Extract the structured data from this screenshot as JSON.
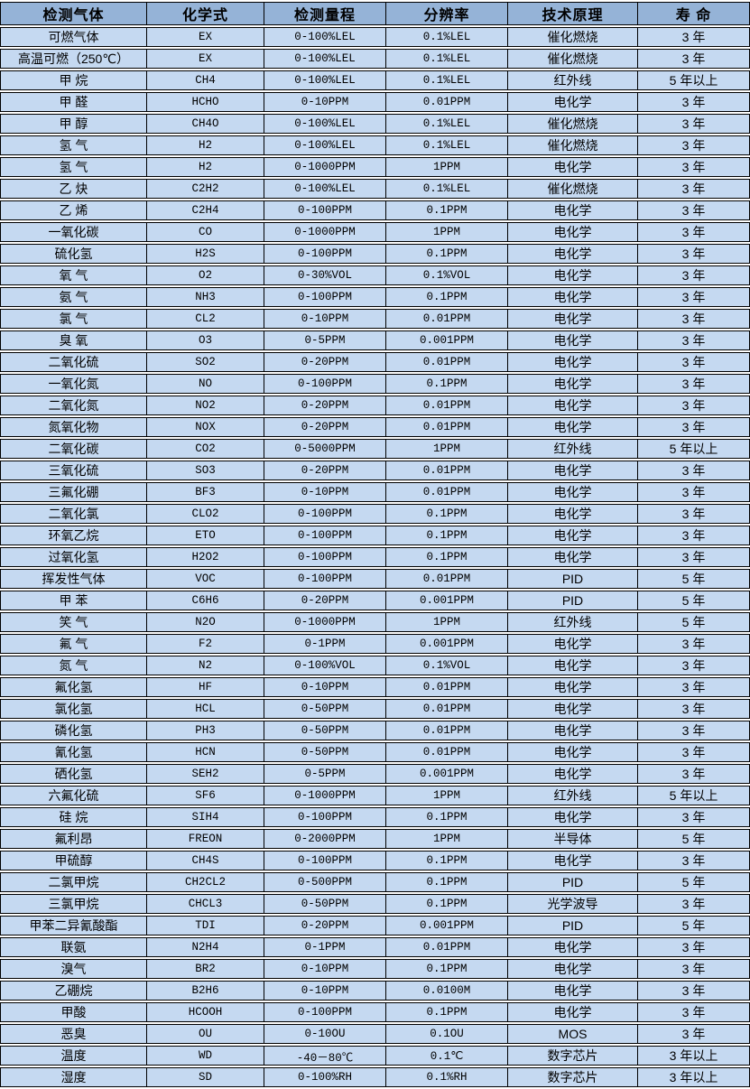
{
  "colors": {
    "header_bg": "#95B3D7",
    "row_bg": "#C5D9F1",
    "border": "#000000",
    "gap": "#FFFFFF"
  },
  "chart_data": {
    "type": "table",
    "title": "",
    "columns": [
      "检测气体",
      "化学式",
      "检测量程",
      "分辨率",
      "技术原理",
      "寿 命"
    ],
    "rows": [
      [
        "可燃气体",
        "EX",
        "0-100%LEL",
        "0.1%LEL",
        "催化燃烧",
        "3 年"
      ],
      [
        "高温可燃（250℃）",
        "EX",
        "0-100%LEL",
        "0.1%LEL",
        "催化燃烧",
        "3 年"
      ],
      [
        "甲 烷",
        "CH4",
        "0-100%LEL",
        "0.1%LEL",
        "红外线",
        "5 年以上"
      ],
      [
        "甲 醛",
        "HCHO",
        "0-10PPM",
        "0.01PPM",
        "电化学",
        "3 年"
      ],
      [
        "甲 醇",
        "CH4O",
        "0-100%LEL",
        "0.1%LEL",
        "催化燃烧",
        "3 年"
      ],
      [
        "氢 气",
        "H2",
        "0-100%LEL",
        "0.1%LEL",
        "催化燃烧",
        "3 年"
      ],
      [
        "氢 气",
        "H2",
        "0-1000PPM",
        "1PPM",
        "电化学",
        "3 年"
      ],
      [
        "乙 炔",
        "C2H2",
        "0-100%LEL",
        "0.1%LEL",
        "催化燃烧",
        "3 年"
      ],
      [
        "乙 烯",
        "C2H4",
        "0-100PPM",
        "0.1PPM",
        "电化学",
        "3 年"
      ],
      [
        "一氧化碳",
        "CO",
        "0-1000PPM",
        "1PPM",
        "电化学",
        "3 年"
      ],
      [
        "硫化氢",
        "H2S",
        "0-100PPM",
        "0.1PPM",
        "电化学",
        "3 年"
      ],
      [
        "氧 气",
        "O2",
        "0-30%VOL",
        "0.1%VOL",
        "电化学",
        "3 年"
      ],
      [
        "氨 气",
        "NH3",
        "0-100PPM",
        "0.1PPM",
        "电化学",
        "3 年"
      ],
      [
        "氯 气",
        "CL2",
        "0-10PPM",
        "0.01PPM",
        "电化学",
        "3 年"
      ],
      [
        "臭 氧",
        "O3",
        "0-5PPM",
        "0.001PPM",
        "电化学",
        "3 年"
      ],
      [
        "二氧化硫",
        "SO2",
        "0-20PPM",
        "0.01PPM",
        "电化学",
        "3 年"
      ],
      [
        "一氧化氮",
        "NO",
        "0-100PPM",
        "0.1PPM",
        "电化学",
        "3 年"
      ],
      [
        "二氧化氮",
        "NO2",
        "0-20PPM",
        "0.01PPM",
        "电化学",
        "3 年"
      ],
      [
        "氮氧化物",
        "NOX",
        "0-20PPM",
        "0.01PPM",
        "电化学",
        "3 年"
      ],
      [
        "二氧化碳",
        "CO2",
        "0-5000PPM",
        "1PPM",
        "红外线",
        "5 年以上"
      ],
      [
        "三氧化硫",
        "SO3",
        "0-20PPM",
        "0.01PPM",
        "电化学",
        "3 年"
      ],
      [
        "三氟化硼",
        "BF3",
        "0-10PPM",
        "0.01PPM",
        "电化学",
        "3 年"
      ],
      [
        "二氧化氯",
        "CLO2",
        "0-100PPM",
        "0.1PPM",
        "电化学",
        "3 年"
      ],
      [
        "环氧乙烷",
        "ETO",
        "0-100PPM",
        "0.1PPM",
        "电化学",
        "3 年"
      ],
      [
        "过氧化氢",
        "H2O2",
        "0-100PPM",
        "0.1PPM",
        "电化学",
        "3 年"
      ],
      [
        "挥发性气体",
        "VOC",
        "0-100PPM",
        "0.01PPM",
        "PID",
        "5 年"
      ],
      [
        "甲 苯",
        "C6H6",
        "0-20PPM",
        "0.001PPM",
        "PID",
        "5 年"
      ],
      [
        "笑 气",
        "N2O",
        "0-1000PPM",
        "1PPM",
        "红外线",
        "5 年"
      ],
      [
        "氟 气",
        "F2",
        "0-1PPM",
        "0.001PPM",
        "电化学",
        "3 年"
      ],
      [
        "氮 气",
        "N2",
        "0-100%VOL",
        "0.1%VOL",
        "电化学",
        "3 年"
      ],
      [
        "氟化氢",
        "HF",
        "0-10PPM",
        "0.01PPM",
        "电化学",
        "3 年"
      ],
      [
        "氯化氢",
        "HCL",
        "0-50PPM",
        "0.01PPM",
        "电化学",
        "3 年"
      ],
      [
        "磷化氢",
        "PH3",
        "0-50PPM",
        "0.01PPM",
        "电化学",
        "3 年"
      ],
      [
        "氰化氢",
        "HCN",
        "0-50PPM",
        "0.01PPM",
        "电化学",
        "3 年"
      ],
      [
        "硒化氢",
        "SEH2",
        "0-5PPM",
        "0.001PPM",
        "电化学",
        "3 年"
      ],
      [
        "六氟化硫",
        "SF6",
        "0-1000PPM",
        "1PPM",
        "红外线",
        "5 年以上"
      ],
      [
        "硅 烷",
        "SIH4",
        "0-100PPM",
        "0.1PPM",
        "电化学",
        "3 年"
      ],
      [
        "氟利昂",
        "FREON",
        "0-2000PPM",
        "1PPM",
        "半导体",
        "5 年"
      ],
      [
        "甲硫醇",
        "CH4S",
        "0-100PPM",
        "0.1PPM",
        "电化学",
        "3 年"
      ],
      [
        "二氯甲烷",
        "CH2CL2",
        "0-500PPM",
        "0.1PPM",
        "PID",
        "5 年"
      ],
      [
        "三氯甲烷",
        "CHCL3",
        "0-50PPM",
        "0.1PPM",
        "光学波导",
        "3 年"
      ],
      [
        "甲苯二异氰酸酯",
        "TDI",
        "0-20PPM",
        "0.001PPM",
        "PID",
        "5 年"
      ],
      [
        "联氨",
        "N2H4",
        "0-1PPM",
        "0.01PPM",
        "电化学",
        "3 年"
      ],
      [
        "溴气",
        "BR2",
        "0-10PPM",
        "0.1PPM",
        "电化学",
        "3 年"
      ],
      [
        "乙硼烷",
        "B2H6",
        "0-10PPM",
        "0.0100M",
        "电化学",
        "3 年"
      ],
      [
        "甲酸",
        "HCOOH",
        "0-100PPM",
        "0.1PPM",
        "电化学",
        "3 年"
      ],
      [
        "恶臭",
        "OU",
        "0-10OU",
        "0.1OU",
        "MOS",
        "3 年"
      ],
      [
        "温度",
        "WD",
        "-40－80℃",
        "0.1℃",
        "数字芯片",
        "3 年以上"
      ],
      [
        "湿度",
        "SD",
        "0-100%RH",
        "0.1%RH",
        "数字芯片",
        "3 年以上"
      ]
    ]
  }
}
